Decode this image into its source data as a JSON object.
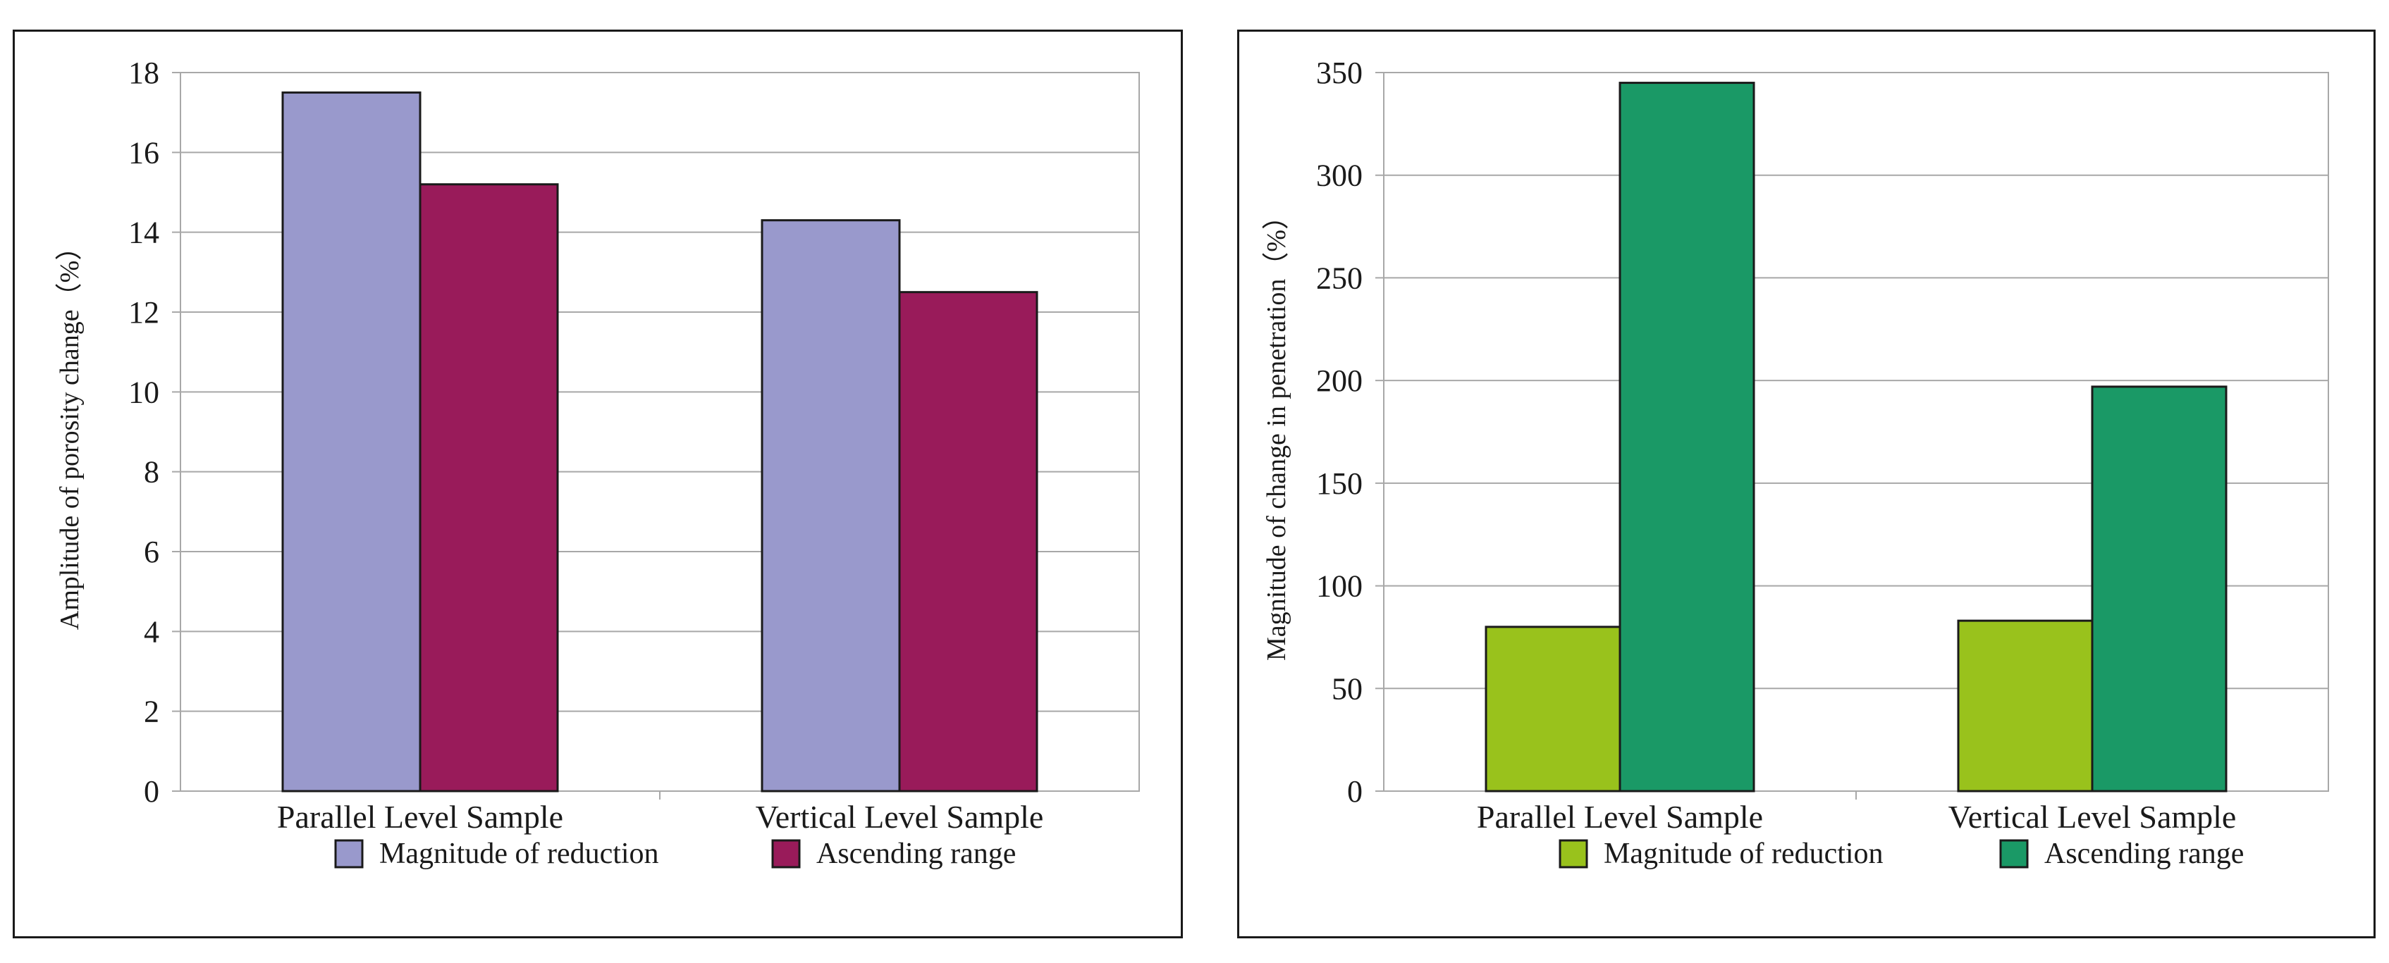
{
  "chart_data": [
    {
      "type": "bar",
      "title": "",
      "xlabel": "",
      "ylabel": "Amplitude of porosity change（%）",
      "categories": [
        "Parallel Level Sample",
        "Vertical Level Sample"
      ],
      "ylim": [
        0,
        18
      ],
      "yticks": [
        0,
        2,
        4,
        6,
        8,
        10,
        12,
        14,
        16,
        18
      ],
      "grid": true,
      "legend_position": "bottom",
      "series": [
        {
          "name": "Magnitude of reduction",
          "values": [
            17.5,
            14.3
          ],
          "color": "#9999cc"
        },
        {
          "name": "Ascending range",
          "values": [
            15.2,
            12.5
          ],
          "color": "#991b5a"
        }
      ]
    },
    {
      "type": "bar",
      "title": "",
      "xlabel": "",
      "ylabel": "Magnitude of change in penetration（%）",
      "categories": [
        "Parallel Level Sample",
        "Vertical Level Sample"
      ],
      "ylim": [
        0,
        350
      ],
      "yticks": [
        0,
        50,
        100,
        150,
        200,
        250,
        300,
        350
      ],
      "grid": true,
      "legend_position": "bottom",
      "series": [
        {
          "name": "Magnitude of reduction",
          "values": [
            80,
            83
          ],
          "color": "#99c21c"
        },
        {
          "name": "Ascending range",
          "values": [
            345,
            197
          ],
          "color": "#1a9966"
        }
      ]
    }
  ]
}
